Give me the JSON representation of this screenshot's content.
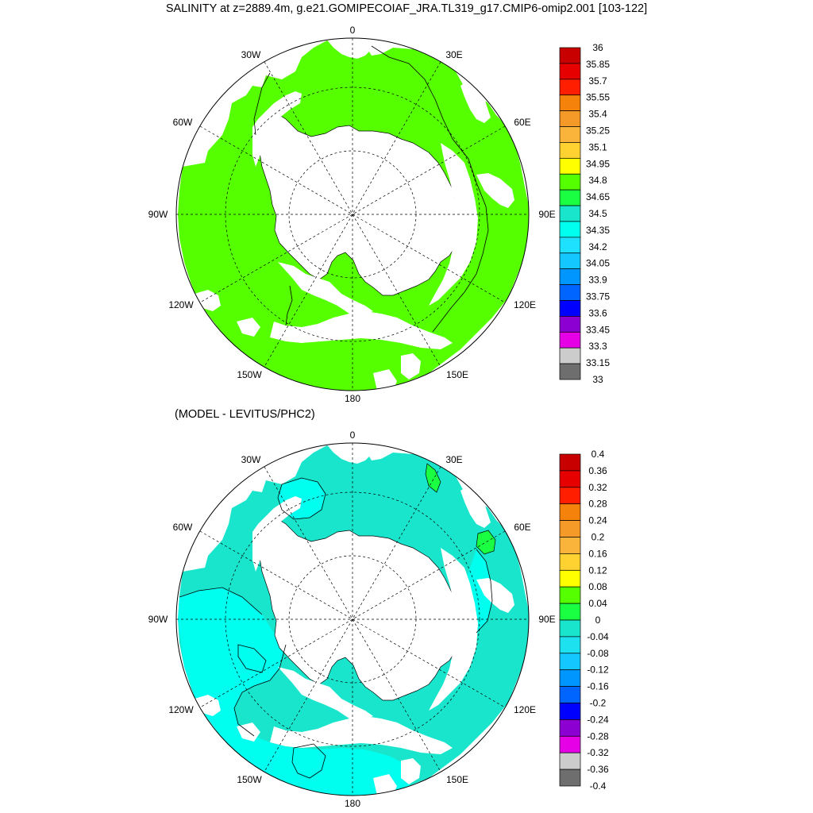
{
  "title": "SALINITY at z=2889.4m, g.e21.GOMIPECOIAF_JRA.TL319_g17.CMIP6-omip2.001 [103-122]",
  "subtitle": "(MODEL - LEVITUS/PHC2)",
  "longitude_labels": {
    "lon_0": "0",
    "lon_30e": "30E",
    "lon_60e": "60E",
    "lon_90e": "90E",
    "lon_120e": "120E",
    "lon_150e": "150E",
    "lon_180": "180",
    "lon_150w": "150W",
    "lon_120w": "120W",
    "lon_90w": "90W",
    "lon_60w": "60W",
    "lon_30w": "30W"
  },
  "map_colors": {
    "land": "#ffffff",
    "ocean_top": "#55ff00",
    "ocean_bottom": "#00ffee",
    "ocean_bottom_alt": "#19e5cc"
  },
  "top_colorbar": {
    "labels": [
      "36",
      "35.85",
      "35.7",
      "35.55",
      "35.4",
      "35.25",
      "35.1",
      "34.95",
      "34.8",
      "34.65",
      "34.5",
      "34.35",
      "34.2",
      "34.05",
      "33.9",
      "33.75",
      "33.6",
      "33.45",
      "33.3",
      "33.15",
      "33"
    ],
    "colors": [
      "#c80000",
      "#e60000",
      "#ff1e00",
      "#f5820a",
      "#f59a28",
      "#fab43c",
      "#ffd232",
      "#ffff00",
      "#55ff00",
      "#1aff42",
      "#19e5cc",
      "#00ffee",
      "#1ee1ff",
      "#14c8ff",
      "#0096ff",
      "#0064ff",
      "#0000ff",
      "#8c00d2",
      "#e600e6",
      "#cccccc",
      "#6e6e6e"
    ]
  },
  "bottom_colorbar": {
    "labels": [
      "0.4",
      "0.36",
      "0.32",
      "0.28",
      "0.24",
      "0.2",
      "0.16",
      "0.12",
      "0.08",
      "0.04",
      "0",
      "-0.04",
      "-0.08",
      "-0.12",
      "-0.16",
      "-0.2",
      "-0.24",
      "-0.28",
      "-0.32",
      "-0.36",
      "-0.4"
    ],
    "colors": [
      "#c80000",
      "#e60000",
      "#ff1e00",
      "#f5820a",
      "#f59a28",
      "#fab43c",
      "#ffd232",
      "#ffff00",
      "#55ff00",
      "#1aff42",
      "#19e5cc",
      "#1ee1f0",
      "#14c8ff",
      "#0096ff",
      "#0064ff",
      "#0000ff",
      "#8c00d2",
      "#e600e6",
      "#cccccc",
      "#6e6e6e"
    ]
  }
}
